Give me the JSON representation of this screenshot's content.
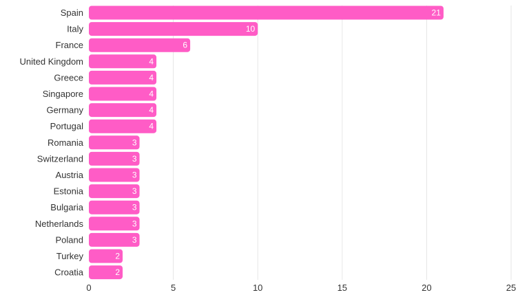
{
  "chart_data": {
    "type": "bar",
    "orientation": "horizontal",
    "categories": [
      "Spain",
      "Italy",
      "France",
      "United Kingdom",
      "Greece",
      "Singapore",
      "Germany",
      "Portugal",
      "Romania",
      "Switzerland",
      "Austria",
      "Estonia",
      "Bulgaria",
      "Netherlands",
      "Poland",
      "Turkey",
      "Croatia"
    ],
    "values": [
      21,
      10,
      6,
      4,
      4,
      4,
      4,
      4,
      3,
      3,
      3,
      3,
      3,
      3,
      3,
      2,
      2
    ],
    "title": "",
    "xlabel": "",
    "ylabel": "",
    "xlim": [
      0,
      25
    ],
    "xticks": [
      0,
      5,
      10,
      15,
      20,
      25
    ],
    "grid": true,
    "data_labels": true,
    "bar_color": "#ff5cc6"
  }
}
